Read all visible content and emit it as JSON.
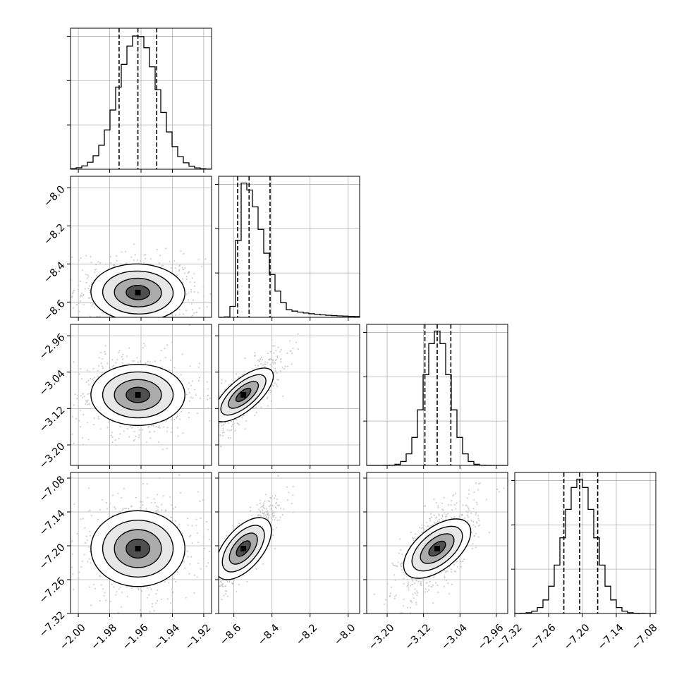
{
  "chart_data": {
    "type": "corner",
    "colors": {
      "line": "#000000",
      "grid": "#b0b0b0",
      "scatter": "#c8c8c8",
      "density": "#000000"
    },
    "grid": true,
    "parameters": [
      {
        "range": [
          -2.005,
          -1.915
        ],
        "ticks": [
          -2.0,
          -1.98,
          -1.96,
          -1.94,
          -1.92
        ],
        "tick_labels": [
          "−2.00",
          "−1.98",
          "−1.96",
          "−1.94",
          "−1.92"
        ],
        "mode": -1.962,
        "sigma_lo": 0.0125,
        "sigma_hi": 0.0125,
        "quantiles": [
          -1.974,
          -1.962,
          -1.95
        ]
      },
      {
        "range": [
          -8.68,
          -7.94
        ],
        "ticks": [
          -8.6,
          -8.4,
          -8.2,
          -8.0
        ],
        "tick_labels": [
          "−8.6",
          "−8.4",
          "−8.2",
          "−8.0"
        ],
        "mode": -8.55,
        "sigma_lo": 0.025,
        "sigma_hi": 0.1,
        "quantiles": [
          -8.58,
          -8.52,
          -8.41
        ]
      },
      {
        "range": [
          -3.245,
          -2.935
        ],
        "ticks": [
          -3.2,
          -3.12,
          -3.04,
          -2.96
        ],
        "tick_labels": [
          "−3.20",
          "−3.12",
          "−3.04",
          "−2.96"
        ],
        "mode": -3.09,
        "sigma_lo": 0.028,
        "sigma_hi": 0.028,
        "quantiles": [
          -3.117,
          -3.09,
          -3.06
        ]
      },
      {
        "range": [
          -7.32,
          -7.07
        ],
        "ticks": [
          -7.32,
          -7.26,
          -7.2,
          -7.14,
          -7.08
        ],
        "tick_labels": [
          "−7.32",
          "−7.26",
          "−7.20",
          "−7.14",
          "−7.08"
        ],
        "mode": -7.205,
        "sigma_lo": 0.028,
        "sigma_hi": 0.028,
        "quantiles": [
          -7.233,
          -7.205,
          -7.173
        ]
      }
    ],
    "correlations": {
      "1-0": -0.1,
      "2-0": 0.0,
      "2-1": 0.8,
      "3-0": 0.0,
      "3-1": 0.9,
      "3-2": 0.65
    }
  }
}
